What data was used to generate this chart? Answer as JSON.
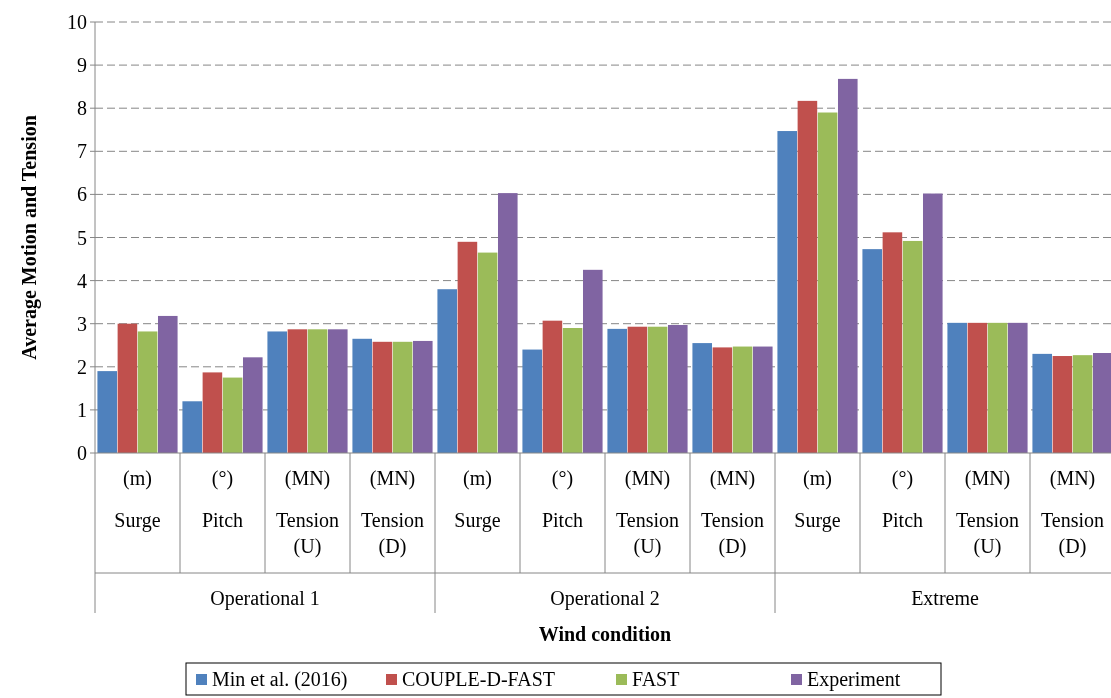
{
  "chart_data": {
    "type": "bar",
    "xlabel": "Wind condition",
    "ylabel": "Average Motion and Tension",
    "categories": [
      "(m)\nSurge",
      "(°)\nPitch",
      "(MN)\nTension\n(U)",
      "(MN)\nTension\n(D)",
      "(m)\nSurge",
      "(°)\nPitch",
      "(MN)\nTension\n(U)",
      "(MN)\nTension\n(D)",
      "(m)\nSurge",
      "(°)\nPitch",
      "(MN)\nTension\n(U)",
      "(MN)\nTension\n(D)"
    ],
    "annotations": [
      "Operational 1",
      "Operational 2",
      "Extreme"
    ],
    "series": [
      {
        "name": "Min et al. (2016)",
        "color": "#4f81bd",
        "values": [
          1.9,
          1.2,
          2.82,
          2.65,
          3.8,
          2.4,
          2.88,
          2.55,
          7.47,
          4.73,
          3.02,
          2.3
        ]
      },
      {
        "name": "COUPLE-D-FAST",
        "color": "#c0504d",
        "values": [
          3.0,
          1.87,
          2.87,
          2.58,
          4.9,
          3.07,
          2.93,
          2.45,
          8.17,
          5.12,
          3.02,
          2.25
        ]
      },
      {
        "name": "FAST",
        "color": "#9bbb59",
        "values": [
          2.82,
          1.75,
          2.87,
          2.58,
          4.65,
          2.9,
          2.93,
          2.47,
          7.9,
          4.92,
          3.02,
          2.27
        ]
      },
      {
        "name": "Experiment",
        "color": "#8064a2",
        "values": [
          3.18,
          2.22,
          2.87,
          2.6,
          6.03,
          4.25,
          2.97,
          2.47,
          8.68,
          6.02,
          3.02,
          2.32
        ]
      }
    ],
    "ylim": [
      0,
      10
    ],
    "yticks": [
      0,
      1,
      2,
      3,
      4,
      5,
      6,
      7,
      8,
      9,
      10
    ],
    "grid": "y",
    "legend": "bottom"
  }
}
